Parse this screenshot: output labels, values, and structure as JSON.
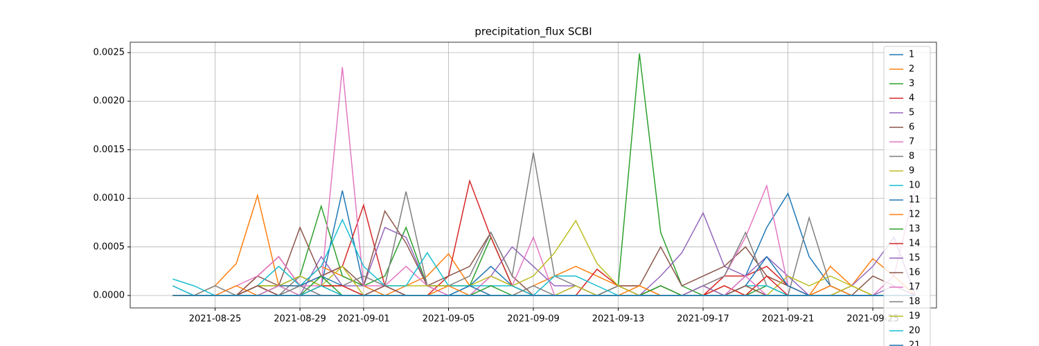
{
  "chart_data": {
    "type": "line",
    "title": "precipitation_flux SCBI",
    "x": [
      "2021-08-23",
      "2021-08-24",
      "2021-08-25",
      "2021-08-26",
      "2021-08-27",
      "2021-08-28",
      "2021-08-29",
      "2021-08-30",
      "2021-08-31",
      "2021-09-01",
      "2021-09-02",
      "2021-09-03",
      "2021-09-04",
      "2021-09-05",
      "2021-09-06",
      "2021-09-07",
      "2021-09-08",
      "2021-09-09",
      "2021-09-10",
      "2021-09-11",
      "2021-09-12",
      "2021-09-13",
      "2021-09-14",
      "2021-09-15",
      "2021-09-16",
      "2021-09-17",
      "2021-09-18",
      "2021-09-19",
      "2021-09-20",
      "2021-09-21",
      "2021-09-22",
      "2021-09-23",
      "2021-09-24",
      "2021-09-25",
      "2021-09-26",
      "2021-09-27"
    ],
    "xlim": [
      "2021-08-21",
      "2021-09-28"
    ],
    "xticks": [
      "2021-08-25",
      "2021-08-29",
      "2021-09-01",
      "2021-09-05",
      "2021-09-09",
      "2021-09-13",
      "2021-09-17",
      "2021-09-21",
      "2021-09-25"
    ],
    "ylim": [
      -0.000128,
      0.002607
    ],
    "yticks": [
      {
        "value": 0,
        "label": "0.0000"
      },
      {
        "value": 0.0005,
        "label": "0.0005"
      },
      {
        "value": 0.001,
        "label": "0.0010"
      },
      {
        "value": 0.0015,
        "label": "0.0015"
      },
      {
        "value": 0.002,
        "label": "0.0020"
      },
      {
        "value": 0.0025,
        "label": "0.0025"
      }
    ],
    "grid": true,
    "legend": "upper right",
    "series": [
      {
        "name": "1",
        "color": "#1f77b4",
        "values": [
          0,
          0,
          0,
          0,
          0,
          0.0001,
          0.0002,
          0.0001,
          0.00108,
          0.0001,
          0,
          0,
          0,
          0,
          0.0001,
          0.0003,
          0.0001,
          0,
          0,
          0,
          0,
          0,
          0,
          0,
          0,
          0.0001,
          0,
          0.0002,
          0.0007,
          0.00105,
          0.0004,
          0.0001,
          0,
          0,
          0,
          0
        ]
      },
      {
        "name": "2",
        "color": "#ff7f0e",
        "values": [
          0,
          0,
          0.0001,
          0.00033,
          0.00103,
          0.0001,
          0.0001,
          0.0003,
          0.0002,
          0.0001,
          0,
          0.0001,
          0.0002,
          0.00043,
          0.0001,
          0,
          0,
          0.0001,
          0.0002,
          0.0003,
          0.0002,
          0.0001,
          0.0001,
          0,
          0,
          0,
          0.0001,
          0,
          0.0002,
          0.0001,
          0,
          0.0003,
          0.0001,
          0.00038,
          0.0002,
          0
        ]
      },
      {
        "name": "3",
        "color": "#2ca02c",
        "values": [
          0,
          0,
          0,
          0,
          0.0001,
          0.0001,
          0.0002,
          0.00092,
          0.0002,
          0.0001,
          0.0002,
          0.0007,
          0.0001,
          0.0001,
          0.0001,
          0.0006,
          0.0001,
          0,
          0,
          0,
          0,
          0.0001,
          0.00249,
          0.00065,
          0.0001,
          0,
          0,
          0,
          0.0001,
          0,
          0,
          0,
          0,
          0,
          0,
          0
        ]
      },
      {
        "name": "4",
        "color": "#d62728",
        "values": [
          0,
          0,
          0,
          0,
          0.0002,
          0.0004,
          0.0001,
          0.0002,
          0.0003,
          0.00093,
          0.0001,
          0,
          0,
          0.0002,
          0.00118,
          0.0006,
          0.0001,
          0,
          0,
          0,
          0.00027,
          0.0001,
          0,
          0.0001,
          0,
          0,
          0.0002,
          0.0002,
          0.0003,
          0.0001,
          0,
          0,
          0.0001,
          0,
          0,
          0
        ]
      },
      {
        "name": "5",
        "color": "#9467bd",
        "values": [
          0.0001,
          0,
          0,
          0,
          0,
          0,
          0,
          0.0004,
          0.0001,
          0.0001,
          0.0007,
          0.0006,
          0.0001,
          0,
          0,
          0.0002,
          0.0005,
          0.0003,
          0.0001,
          0.0001,
          0,
          0,
          0,
          0.0002,
          0.00044,
          0.00085,
          0.0003,
          0.0002,
          0.0004,
          0.0002,
          0,
          0,
          0.0001,
          0.0003,
          0.0006,
          0
        ]
      },
      {
        "name": "6",
        "color": "#8c564b",
        "values": [
          0,
          0,
          0,
          0,
          0.0002,
          0.0001,
          0.0007,
          0.0002,
          0.0003,
          0.0001,
          0.00087,
          0.00054,
          0.0001,
          0.0002,
          0.0003,
          0.00065,
          0.0002,
          0,
          0,
          0,
          0,
          0.0001,
          0.0001,
          0.0005,
          0.0001,
          0.0002,
          0.0003,
          0.0005,
          0.0002,
          0.0001,
          0,
          0.0001,
          0,
          0.0002,
          0.0001,
          0
        ]
      },
      {
        "name": "7",
        "color": "#e377c2",
        "values": [
          0,
          0,
          0,
          0.0001,
          0.0002,
          0.0004,
          0.0001,
          0.0001,
          0.00235,
          0.0001,
          0.0001,
          0.0003,
          0.0001,
          0,
          0,
          0.0002,
          0.0001,
          0.0006,
          0,
          0.0001,
          0,
          0,
          0,
          0,
          0,
          0.0001,
          0.0002,
          0.0006,
          0.00113,
          0.0001,
          0,
          0,
          0,
          0,
          0.0002,
          0.0011
        ]
      },
      {
        "name": "8",
        "color": "#7f7f7f",
        "values": [
          0,
          0,
          0.0001,
          0,
          0.0001,
          0,
          0.0002,
          0.0001,
          0.0001,
          0.0002,
          0.0001,
          0.00107,
          0.0001,
          0.0001,
          0.0002,
          0.00065,
          0.0002,
          0.00147,
          0.0002,
          0.0001,
          0,
          0.0001,
          0,
          0.0001,
          0,
          0.0001,
          0.0002,
          0.00065,
          0.0001,
          0,
          0.0008,
          0.0001,
          0,
          0,
          0,
          0
        ]
      },
      {
        "name": "9",
        "color": "#bcbd22",
        "values": [
          0,
          0,
          0,
          0,
          0.0001,
          0.0001,
          0.0002,
          0.0001,
          0.0003,
          0,
          0.0001,
          0.0001,
          0.0001,
          0.0001,
          0.0001,
          0.0002,
          0.0001,
          0.0002,
          0.00044,
          0.00077,
          0.00033,
          0.0001,
          0,
          0,
          0,
          0.0001,
          0,
          0.0001,
          0,
          0.0002,
          0.0001,
          0.0002,
          0.0001,
          0,
          0,
          0
        ]
      },
      {
        "name": "10",
        "color": "#17becf",
        "values": [
          0.00017,
          0.0001,
          0,
          0,
          0.0001,
          0.0003,
          0.0001,
          0.0003,
          0.00078,
          0.0003,
          0.0001,
          0.0001,
          0.00044,
          0.0001,
          0.0001,
          0.0001,
          0.0001,
          0,
          0.0002,
          0.0002,
          0.0001,
          0,
          0,
          0,
          0,
          0,
          0,
          0.0001,
          0.0001,
          0,
          0,
          0,
          0,
          0,
          0,
          0
        ]
      },
      {
        "name": "11",
        "color": "#1f77b4",
        "values": [
          0,
          0,
          0,
          0,
          0,
          0.0001,
          0.0001,
          0.0002,
          0.0001,
          0,
          0,
          0,
          0,
          0,
          0.0001,
          0,
          0,
          0,
          0,
          0,
          0,
          0,
          0,
          0,
          0,
          0,
          0,
          0.0001,
          0.0004,
          0.0001,
          0,
          0,
          0,
          0,
          0,
          0
        ]
      },
      {
        "name": "12",
        "color": "#ff7f0e",
        "values": [
          0,
          0,
          0,
          0.0001,
          0,
          0,
          0,
          0.0001,
          0.0001,
          0,
          0,
          0,
          0,
          0.0001,
          0,
          0,
          0,
          0,
          0,
          0,
          0,
          0,
          0.0001,
          0,
          0,
          0,
          0,
          0,
          0,
          0,
          0,
          0.0001,
          0,
          0,
          0,
          0
        ]
      },
      {
        "name": "13",
        "color": "#2ca02c",
        "values": [
          0,
          0,
          0,
          0,
          0,
          0.0001,
          0,
          0.0002,
          0,
          0,
          0,
          0,
          0,
          0,
          0,
          0.0001,
          0,
          0,
          0,
          0,
          0,
          0,
          0,
          0.0001,
          0,
          0,
          0,
          0,
          0,
          0,
          0,
          0,
          0,
          0,
          0,
          0
        ]
      },
      {
        "name": "14",
        "color": "#d62728",
        "values": [
          0,
          0,
          0,
          0,
          0.0001,
          0,
          0,
          0.0001,
          0.0001,
          0,
          0,
          0,
          0,
          0,
          0,
          0,
          0,
          0,
          0,
          0,
          0,
          0,
          0,
          0,
          0,
          0,
          0.0001,
          0,
          0.0002,
          0,
          0,
          0,
          0,
          0,
          0,
          0
        ]
      },
      {
        "name": "15",
        "color": "#9467bd",
        "values": [
          0,
          0,
          0,
          0,
          0,
          0,
          0.0001,
          0,
          0,
          0,
          0.0001,
          0,
          0,
          0,
          0,
          0,
          0,
          0,
          0,
          0,
          0,
          0,
          0,
          0,
          0,
          0.0001,
          0,
          0,
          0,
          0,
          0,
          0,
          0,
          0,
          0.0001,
          0
        ]
      },
      {
        "name": "16",
        "color": "#8c564b",
        "values": [
          0,
          0,
          0,
          0,
          0.0001,
          0,
          0,
          0.0001,
          0,
          0,
          0.0001,
          0,
          0,
          0,
          0,
          0,
          0,
          0,
          0,
          0,
          0,
          0,
          0,
          0,
          0,
          0,
          0,
          0.0001,
          0,
          0,
          0,
          0,
          0,
          0,
          0,
          0
        ]
      },
      {
        "name": "17",
        "color": "#e377c2",
        "values": [
          0,
          0,
          0,
          0,
          0,
          0.0001,
          0,
          0,
          0,
          0,
          0,
          0,
          0,
          0,
          0,
          0,
          0,
          0,
          0,
          0,
          0,
          0,
          0,
          0,
          0,
          0,
          0,
          0.0002,
          0,
          0,
          0,
          0,
          0,
          0,
          0,
          0
        ]
      },
      {
        "name": "18",
        "color": "#7f7f7f",
        "values": [
          0,
          0,
          0,
          0,
          0,
          0,
          0.0001,
          0,
          0,
          0,
          0,
          0,
          0,
          0,
          0,
          0,
          0,
          0.0001,
          0,
          0,
          0,
          0,
          0,
          0,
          0,
          0,
          0,
          0,
          0,
          0,
          0,
          0,
          0,
          0,
          0,
          0
        ]
      },
      {
        "name": "19",
        "color": "#bcbd22",
        "values": [
          0,
          0,
          0,
          0,
          0,
          0,
          0,
          0,
          0,
          0,
          0,
          0,
          0,
          0,
          0,
          0,
          0,
          0,
          0,
          0.0001,
          0,
          0,
          0,
          0,
          0,
          0,
          0,
          0,
          0,
          0,
          0,
          0,
          0.0001,
          0,
          0,
          0
        ]
      },
      {
        "name": "20",
        "color": "#17becf",
        "values": [
          0.0001,
          0,
          0,
          0,
          0,
          0,
          0,
          0.0001,
          0,
          0,
          0,
          0,
          0,
          0,
          0,
          0,
          0,
          0,
          0,
          0,
          0,
          0,
          0,
          0,
          0,
          0,
          0,
          0,
          0,
          0,
          0,
          0,
          0,
          0,
          0,
          0
        ]
      },
      {
        "name": "21",
        "color": "#1f77b4",
        "values": [
          0,
          0,
          0,
          0,
          0,
          0,
          0,
          0,
          0,
          0,
          0,
          0,
          0,
          0,
          0,
          0,
          0,
          0,
          0,
          0,
          0,
          0,
          0,
          0,
          0,
          0,
          0,
          0,
          0,
          0,
          0,
          0,
          0,
          0,
          0,
          0
        ]
      }
    ]
  }
}
